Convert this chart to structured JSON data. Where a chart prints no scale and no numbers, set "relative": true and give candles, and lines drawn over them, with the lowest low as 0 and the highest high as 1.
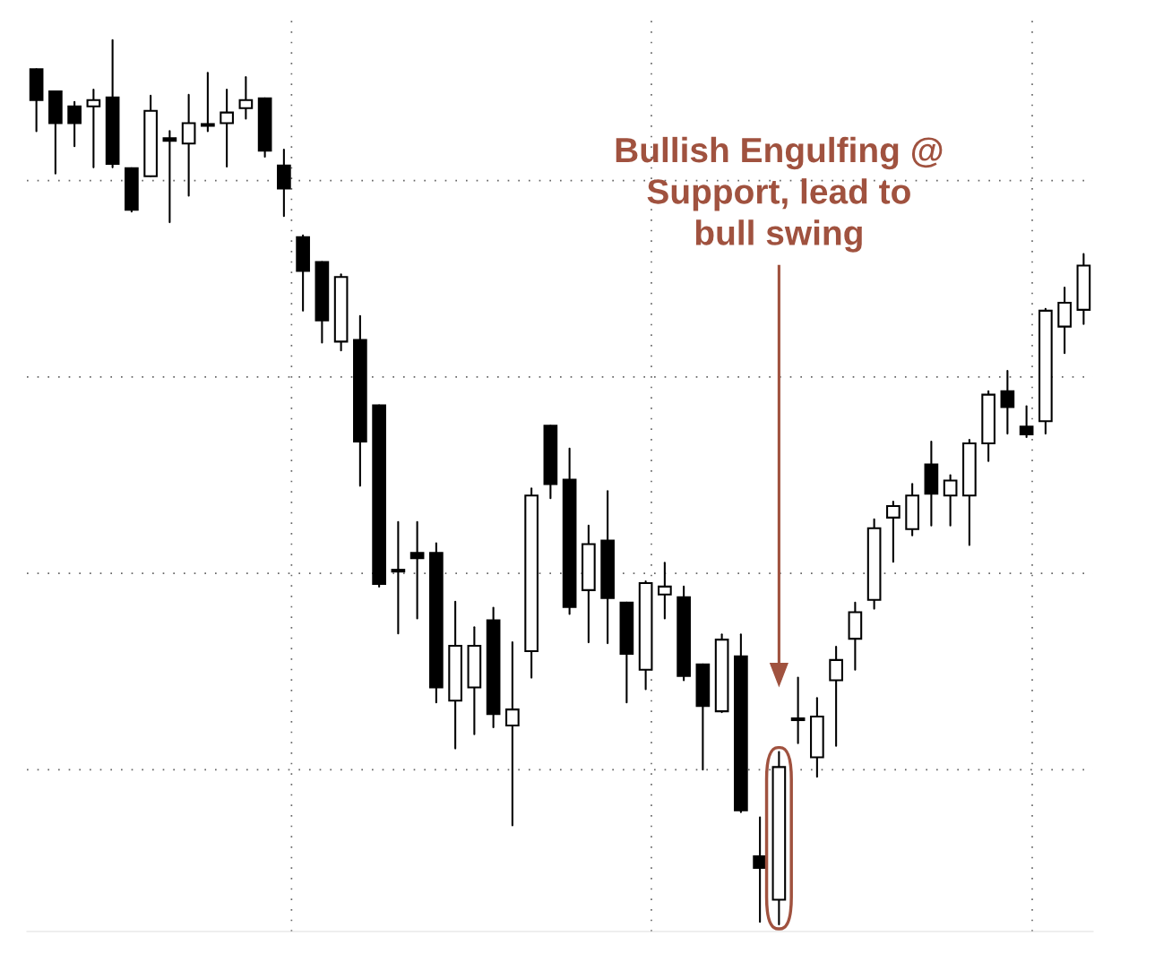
{
  "chart_data": {
    "type": "candlestick",
    "relative": true,
    "grid": true,
    "line_style": "dotted",
    "categories": [
      null,
      null,
      null,
      null,
      null,
      null,
      null,
      null,
      null,
      null,
      null,
      null,
      null,
      null,
      null,
      null,
      null,
      null,
      null,
      null,
      null,
      null,
      null,
      null,
      null,
      null,
      null,
      null,
      null,
      null,
      null,
      null,
      null,
      null,
      null,
      null,
      null,
      null,
      null,
      null,
      null,
      null,
      null,
      null,
      null,
      null,
      null,
      null,
      null,
      null,
      null,
      null,
      null,
      null,
      null,
      null
    ],
    "ohlc": [
      [
        0.967,
        0.967,
        0.897,
        0.932
      ],
      [
        0.942,
        0.942,
        0.849,
        0.906
      ],
      [
        0.925,
        0.93,
        0.88,
        0.906
      ],
      [
        0.925,
        0.944,
        0.856,
        0.932
      ],
      [
        0.935,
        1.0,
        0.856,
        0.86
      ],
      [
        0.855,
        0.855,
        0.806,
        0.808
      ],
      [
        0.846,
        0.937,
        0.846,
        0.92
      ],
      [
        0.889,
        0.897,
        0.794,
        0.886
      ],
      [
        0.883,
        0.938,
        0.824,
        0.906
      ],
      [
        0.903,
        0.963,
        0.897,
        0.904
      ],
      [
        0.906,
        0.944,
        0.857,
        0.918
      ],
      [
        0.923,
        0.958,
        0.911,
        0.932
      ],
      [
        0.934,
        0.934,
        0.868,
        0.875
      ],
      [
        0.858,
        0.876,
        0.801,
        0.832
      ],
      [
        0.777,
        0.779,
        0.694,
        0.739
      ],
      [
        0.749,
        0.749,
        0.658,
        0.683
      ],
      [
        0.659,
        0.735,
        0.649,
        0.732
      ],
      [
        0.661,
        0.688,
        0.496,
        0.546
      ],
      [
        0.587,
        0.587,
        0.382,
        0.385
      ],
      [
        0.401,
        0.455,
        0.329,
        0.399
      ],
      [
        0.42,
        0.455,
        0.346,
        0.414
      ],
      [
        0.42,
        0.431,
        0.251,
        0.268
      ],
      [
        0.253,
        0.365,
        0.199,
        0.315
      ],
      [
        0.268,
        0.336,
        0.215,
        0.315
      ],
      [
        0.344,
        0.358,
        0.223,
        0.238
      ],
      [
        0.225,
        0.319,
        0.112,
        0.243
      ],
      [
        0.309,
        0.493,
        0.279,
        0.485
      ],
      [
        0.564,
        0.564,
        0.482,
        0.498
      ],
      [
        0.503,
        0.538,
        0.351,
        0.359
      ],
      [
        0.378,
        0.451,
        0.319,
        0.43
      ],
      [
        0.434,
        0.49,
        0.318,
        0.369
      ],
      [
        0.364,
        0.364,
        0.251,
        0.306
      ],
      [
        0.288,
        0.388,
        0.266,
        0.386
      ],
      [
        0.373,
        0.409,
        0.346,
        0.382
      ],
      [
        0.37,
        0.382,
        0.276,
        0.281
      ],
      [
        0.294,
        0.294,
        0.175,
        0.247
      ],
      [
        0.241,
        0.328,
        0.24,
        0.322
      ],
      [
        0.303,
        0.328,
        0.127,
        0.129
      ],
      [
        0.077,
        0.121,
        0.003,
        0.064
      ],
      [
        0.028,
        0.195,
        0.0,
        0.178
      ],
      [
        0.233,
        0.279,
        0.205,
        0.231
      ],
      [
        0.189,
        0.256,
        0.167,
        0.235
      ],
      [
        0.276,
        0.314,
        0.202,
        0.299
      ],
      [
        0.323,
        0.364,
        0.288,
        0.353
      ],
      [
        0.367,
        0.458,
        0.357,
        0.448
      ],
      [
        0.46,
        0.478,
        0.41,
        0.473
      ],
      [
        0.447,
        0.498,
        0.44,
        0.485
      ],
      [
        0.52,
        0.546,
        0.451,
        0.487
      ],
      [
        0.485,
        0.508,
        0.451,
        0.502
      ],
      [
        0.485,
        0.548,
        0.429,
        0.544
      ],
      [
        0.544,
        0.603,
        0.524,
        0.599
      ],
      [
        0.603,
        0.626,
        0.555,
        0.585
      ],
      [
        0.563,
        0.586,
        0.551,
        0.554
      ],
      [
        0.569,
        0.696,
        0.555,
        0.694
      ],
      [
        0.676,
        0.72,
        0.646,
        0.703
      ],
      [
        0.695,
        0.758,
        0.679,
        0.745
      ]
    ],
    "annotations": [
      "Bullish Engulfing @\nSupport, lead to\nbull swing"
    ]
  }
}
